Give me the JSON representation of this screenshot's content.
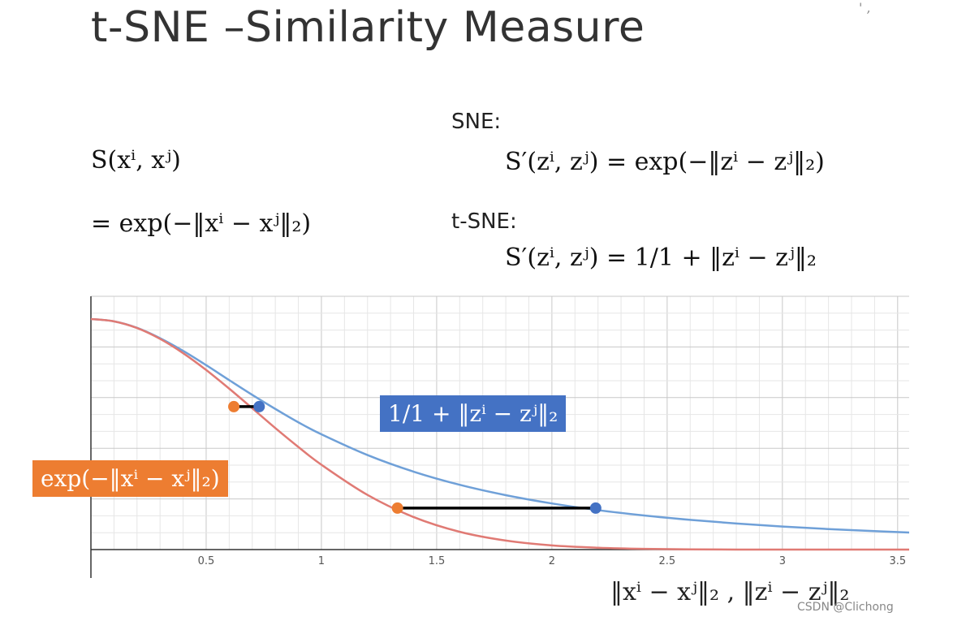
{
  "slide": {
    "title": "t-SNE –Similarity Measure",
    "corner_mark": "' ,",
    "watermark": "CSDN @Clichong"
  },
  "formulas": {
    "left_line1": "S(xⁱ, xʲ)",
    "left_line2": "= exp(−‖xⁱ − xʲ‖₂)",
    "sne_label": "SNE:",
    "sne_formula": "S′(zⁱ, zʲ) = exp(−‖zⁱ − zʲ‖₂)",
    "tsne_label": "t-SNE:",
    "tsne_formula": "S′(zⁱ, zʲ) = 1/1 + ‖zⁱ − zʲ‖₂"
  },
  "chart_data": {
    "type": "line",
    "xlim": [
      0,
      3.55
    ],
    "ylim": [
      0,
      1
    ],
    "x_ticks": [
      0.5,
      1,
      1.5,
      2,
      2.5,
      3,
      3.5
    ],
    "x_tick_labels": [
      "0.5",
      "1",
      "1.5",
      "2",
      "2.5",
      "3",
      "3.5"
    ],
    "grid": true,
    "xlabel": "‖xⁱ − xʲ‖₂ , ‖zⁱ − zʲ‖₂",
    "series": [
      {
        "name": "1/1 + ‖zⁱ − zʲ‖₂",
        "color": "#6fa0d8",
        "x": [
          0,
          0.1,
          0.2,
          0.3,
          0.4,
          0.5,
          0.6,
          0.7,
          0.8,
          0.9,
          1.0,
          1.2,
          1.4,
          1.6,
          1.8,
          2.0,
          2.2,
          2.4,
          2.6,
          2.8,
          3.0,
          3.2,
          3.4,
          3.55
        ],
        "y": [
          1.0,
          0.99,
          0.962,
          0.917,
          0.862,
          0.8,
          0.735,
          0.671,
          0.61,
          0.552,
          0.5,
          0.41,
          0.338,
          0.281,
          0.236,
          0.2,
          0.171,
          0.148,
          0.129,
          0.113,
          0.1,
          0.089,
          0.08,
          0.074
        ]
      },
      {
        "name": "exp(−‖xⁱ − xʲ‖₂)",
        "color": "#e07a74",
        "x": [
          0,
          0.1,
          0.2,
          0.3,
          0.4,
          0.5,
          0.6,
          0.7,
          0.8,
          0.9,
          1.0,
          1.2,
          1.4,
          1.6,
          1.8,
          2.0,
          2.2,
          2.4,
          2.6,
          2.8,
          3.0,
          3.2,
          3.4,
          3.55
        ],
        "y": [
          1.0,
          0.99,
          0.961,
          0.914,
          0.852,
          0.779,
          0.698,
          0.613,
          0.527,
          0.445,
          0.368,
          0.237,
          0.141,
          0.077,
          0.039,
          0.018,
          0.008,
          0.003,
          0.001,
          0.0,
          0.0,
          0.0,
          0.0,
          0.0
        ]
      }
    ],
    "annotations": [
      {
        "x1": 0.62,
        "x2": 0.73,
        "y": 0.62,
        "color_1": "#ed7d31",
        "color_2": "#4472c4"
      },
      {
        "x1": 1.33,
        "x2": 2.19,
        "y": 0.18,
        "color_1": "#ed7d31",
        "color_2": "#4472c4"
      }
    ],
    "legend": [
      {
        "label": "1/1 + ‖zⁱ − zʲ‖₂",
        "color": "#4472c4"
      },
      {
        "label": "exp(−‖xⁱ − xʲ‖₂)",
        "color": "#ed7d31"
      }
    ]
  }
}
